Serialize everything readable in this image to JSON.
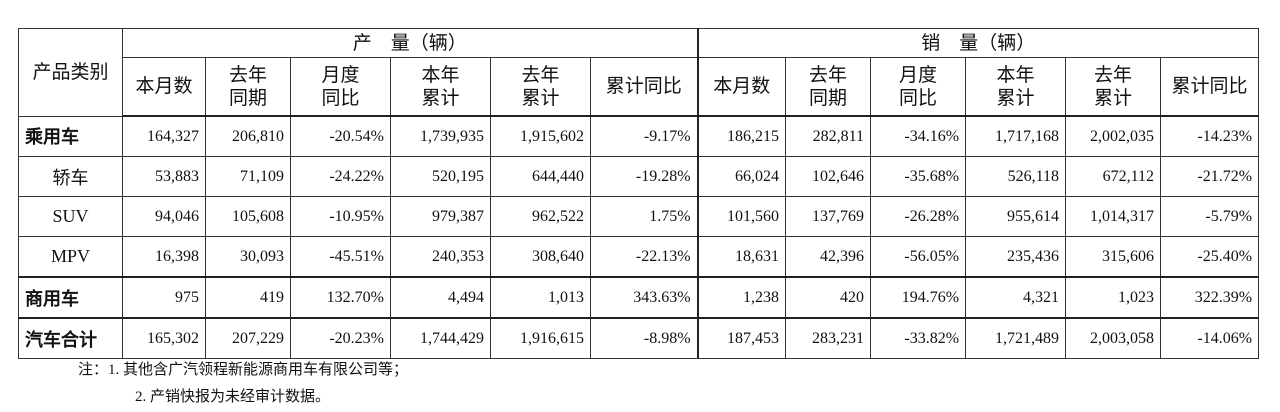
{
  "table": {
    "row_header": "产品类别",
    "groups": [
      {
        "title": "产　量（辆）",
        "columns": [
          [
            "本月数"
          ],
          [
            "去年",
            "同期"
          ],
          [
            "月度",
            "同比"
          ],
          [
            "本年",
            "累计"
          ],
          [
            "去年",
            "累计"
          ],
          [
            "累计同比"
          ]
        ]
      },
      {
        "title": "销　量（辆）",
        "columns": [
          [
            "本月数"
          ],
          [
            "去年",
            "同期"
          ],
          [
            "月度",
            "同比"
          ],
          [
            "本年",
            "累计"
          ],
          [
            "去年",
            "累计"
          ],
          [
            "累计同比"
          ]
        ]
      }
    ],
    "rows": [
      {
        "label": "乘用车",
        "values": [
          "164,327",
          "206,810",
          "-20.54%",
          "1,739,935",
          "1,915,602",
          "-9.17%",
          "186,215",
          "282,811",
          "-34.16%",
          "1,717,168",
          "2,002,035",
          "-14.23%"
        ]
      },
      {
        "label": "轿车",
        "values": [
          "53,883",
          "71,109",
          "-24.22%",
          "520,195",
          "644,440",
          "-19.28%",
          "66,024",
          "102,646",
          "-35.68%",
          "526,118",
          "672,112",
          "-21.72%"
        ]
      },
      {
        "label": "SUV",
        "values": [
          "94,046",
          "105,608",
          "-10.95%",
          "979,387",
          "962,522",
          "1.75%",
          "101,560",
          "137,769",
          "-26.28%",
          "955,614",
          "1,014,317",
          "-5.79%"
        ]
      },
      {
        "label": "MPV",
        "values": [
          "16,398",
          "30,093",
          "-45.51%",
          "240,353",
          "308,640",
          "-22.13%",
          "18,631",
          "42,396",
          "-56.05%",
          "235,436",
          "315,606",
          "-25.40%"
        ]
      },
      {
        "label": "商用车",
        "values": [
          "975",
          "419",
          "132.70%",
          "4,494",
          "1,013",
          "343.63%",
          "1,238",
          "420",
          "194.76%",
          "4,321",
          "1,023",
          "322.39%"
        ]
      },
      {
        "label": "汽车合计",
        "values": [
          "165,302",
          "207,229",
          "-20.23%",
          "1,744,429",
          "1,916,615",
          "-8.98%",
          "187,453",
          "283,231",
          "-33.82%",
          "1,721,489",
          "2,003,058",
          "-14.06%"
        ]
      }
    ]
  },
  "notes": [
    "注：1. 其他含广汽领程新能源商用车有限公司等；",
    "2. 产销快报为未经审计数据。"
  ]
}
